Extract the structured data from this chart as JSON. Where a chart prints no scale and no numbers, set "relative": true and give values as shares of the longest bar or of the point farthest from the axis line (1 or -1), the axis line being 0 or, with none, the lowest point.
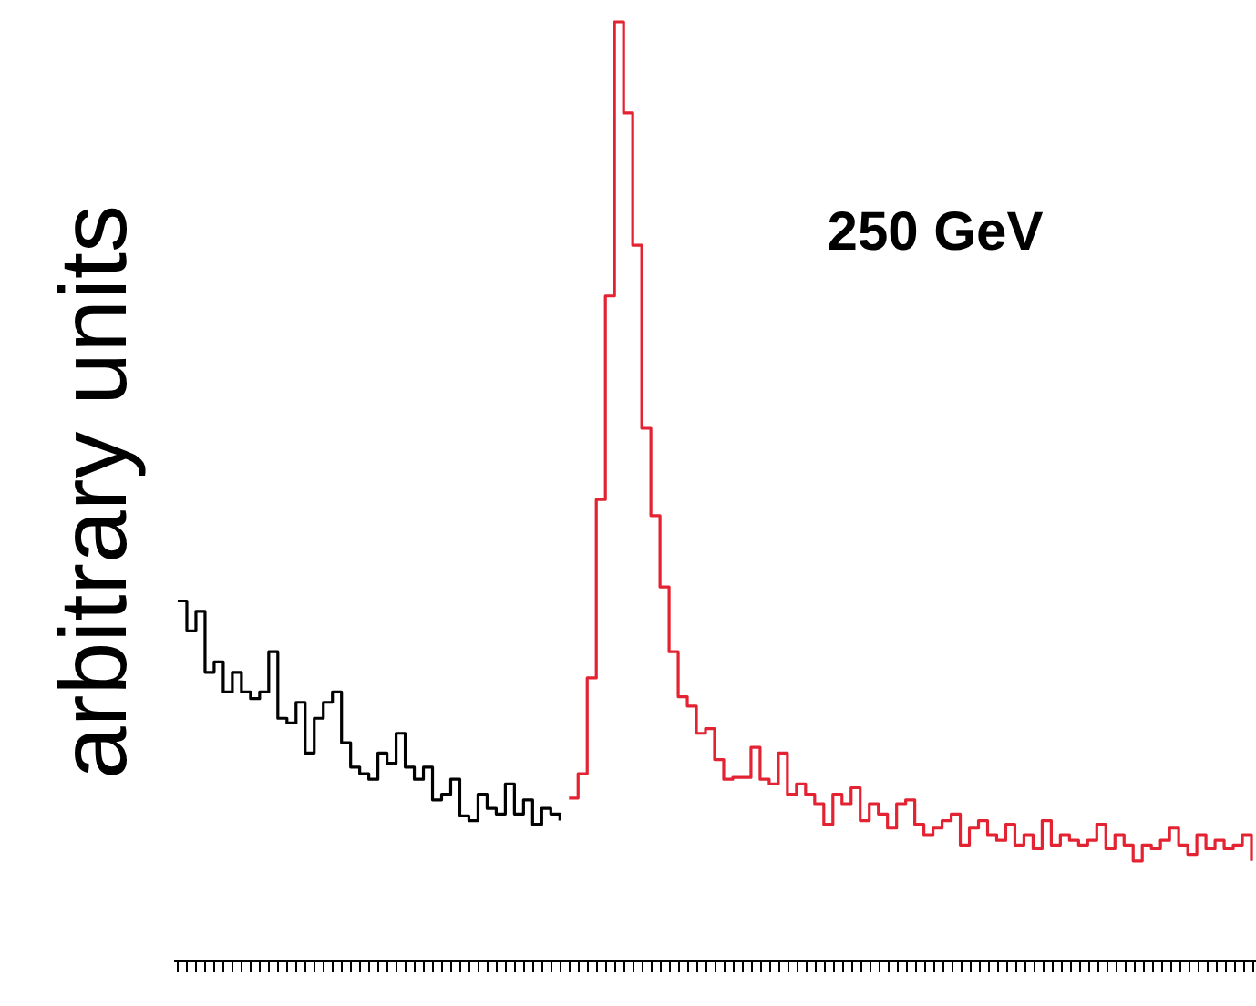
{
  "chart_data": {
    "type": "step",
    "relative": true,
    "ylabel": "arbitrary units",
    "annotations": [
      "250 GeV"
    ],
    "grid": false,
    "categories": [
      null,
      null,
      null,
      null,
      null,
      null,
      null,
      null,
      null,
      null,
      null,
      null,
      null,
      null,
      null,
      null,
      null,
      null,
      null,
      null,
      null,
      null,
      null,
      null,
      null,
      null,
      null,
      null,
      null,
      null,
      null,
      null,
      null,
      null,
      null,
      null,
      null,
      null,
      null,
      null,
      null,
      null,
      null,
      null,
      null,
      null,
      null,
      null,
      null,
      null,
      null,
      null,
      null,
      null,
      null,
      null,
      null,
      null,
      null,
      null,
      null,
      null,
      null,
      null,
      null,
      null,
      null,
      null,
      null,
      null,
      null,
      null,
      null,
      null,
      null,
      null,
      null,
      null,
      null,
      null,
      null,
      null,
      null,
      null,
      null,
      null,
      null,
      null,
      null,
      null,
      null,
      null,
      null,
      null,
      null,
      null,
      null,
      null,
      null,
      null,
      null,
      null,
      null,
      null,
      null,
      null,
      null,
      null,
      null,
      null,
      null,
      null,
      null,
      null,
      null,
      null,
      null,
      null,
      null
    ],
    "series": [
      {
        "color": "#000000",
        "values": [
          0.383,
          0.351,
          0.372,
          0.307,
          0.318,
          0.286,
          0.307,
          0.286,
          0.279,
          0.286,
          0.329,
          0.258,
          0.253,
          0.275,
          0.221,
          0.258,
          0.275,
          0.286,
          0.232,
          0.206,
          0.199,
          0.193,
          0.221,
          0.21,
          0.242,
          0.206,
          0.193,
          0.206,
          0.171,
          0.177,
          0.193,
          0.154,
          0.149,
          0.177,
          0.162,
          0.156,
          0.188,
          0.156,
          0.171,
          0.145,
          0.162,
          0.156,
          0.149,
          null,
          null,
          null,
          null,
          null,
          null,
          null,
          null,
          null,
          null,
          null,
          null,
          null,
          null,
          null,
          null,
          null,
          null,
          null,
          null,
          null,
          null,
          null,
          null,
          null,
          null,
          null,
          null,
          null,
          null,
          null,
          null,
          null,
          null,
          null,
          null,
          null,
          null,
          null,
          null,
          null,
          null,
          null,
          null,
          null,
          null,
          null,
          null,
          null,
          null,
          null,
          null,
          null,
          null,
          null,
          null,
          null,
          null,
          null,
          null,
          null,
          null,
          null,
          null,
          null,
          null,
          null,
          null,
          null,
          null,
          null,
          null,
          null,
          null,
          null,
          null
        ]
      },
      {
        "color": "#e32232",
        "values": [
          null,
          null,
          null,
          null,
          null,
          null,
          null,
          null,
          null,
          null,
          null,
          null,
          null,
          null,
          null,
          null,
          null,
          null,
          null,
          null,
          null,
          null,
          null,
          null,
          null,
          null,
          null,
          null,
          null,
          null,
          null,
          null,
          null,
          null,
          null,
          null,
          null,
          null,
          null,
          null,
          null,
          null,
          null,
          0.173,
          0.199,
          0.301,
          0.491,
          0.708,
          1.0,
          0.903,
          0.762,
          0.567,
          0.474,
          0.398,
          0.329,
          0.281,
          0.271,
          0.242,
          0.247,
          0.214,
          0.193,
          0.195,
          0.195,
          0.227,
          0.193,
          0.188,
          0.221,
          0.177,
          0.188,
          0.177,
          0.167,
          0.145,
          0.177,
          0.167,
          0.184,
          0.149,
          0.167,
          0.156,
          0.141,
          0.167,
          0.171,
          0.145,
          0.134,
          0.141,
          0.149,
          0.156,
          0.123,
          0.141,
          0.149,
          0.134,
          0.128,
          0.145,
          0.123,
          0.134,
          0.119,
          0.149,
          0.123,
          0.134,
          0.128,
          0.123,
          0.128,
          0.145,
          0.119,
          0.134,
          0.123,
          0.106,
          0.123,
          0.119,
          0.128,
          0.141,
          0.123,
          0.113,
          0.134,
          0.119,
          0.128,
          0.119,
          0.123,
          0.134,
          0.106
        ]
      }
    ]
  }
}
